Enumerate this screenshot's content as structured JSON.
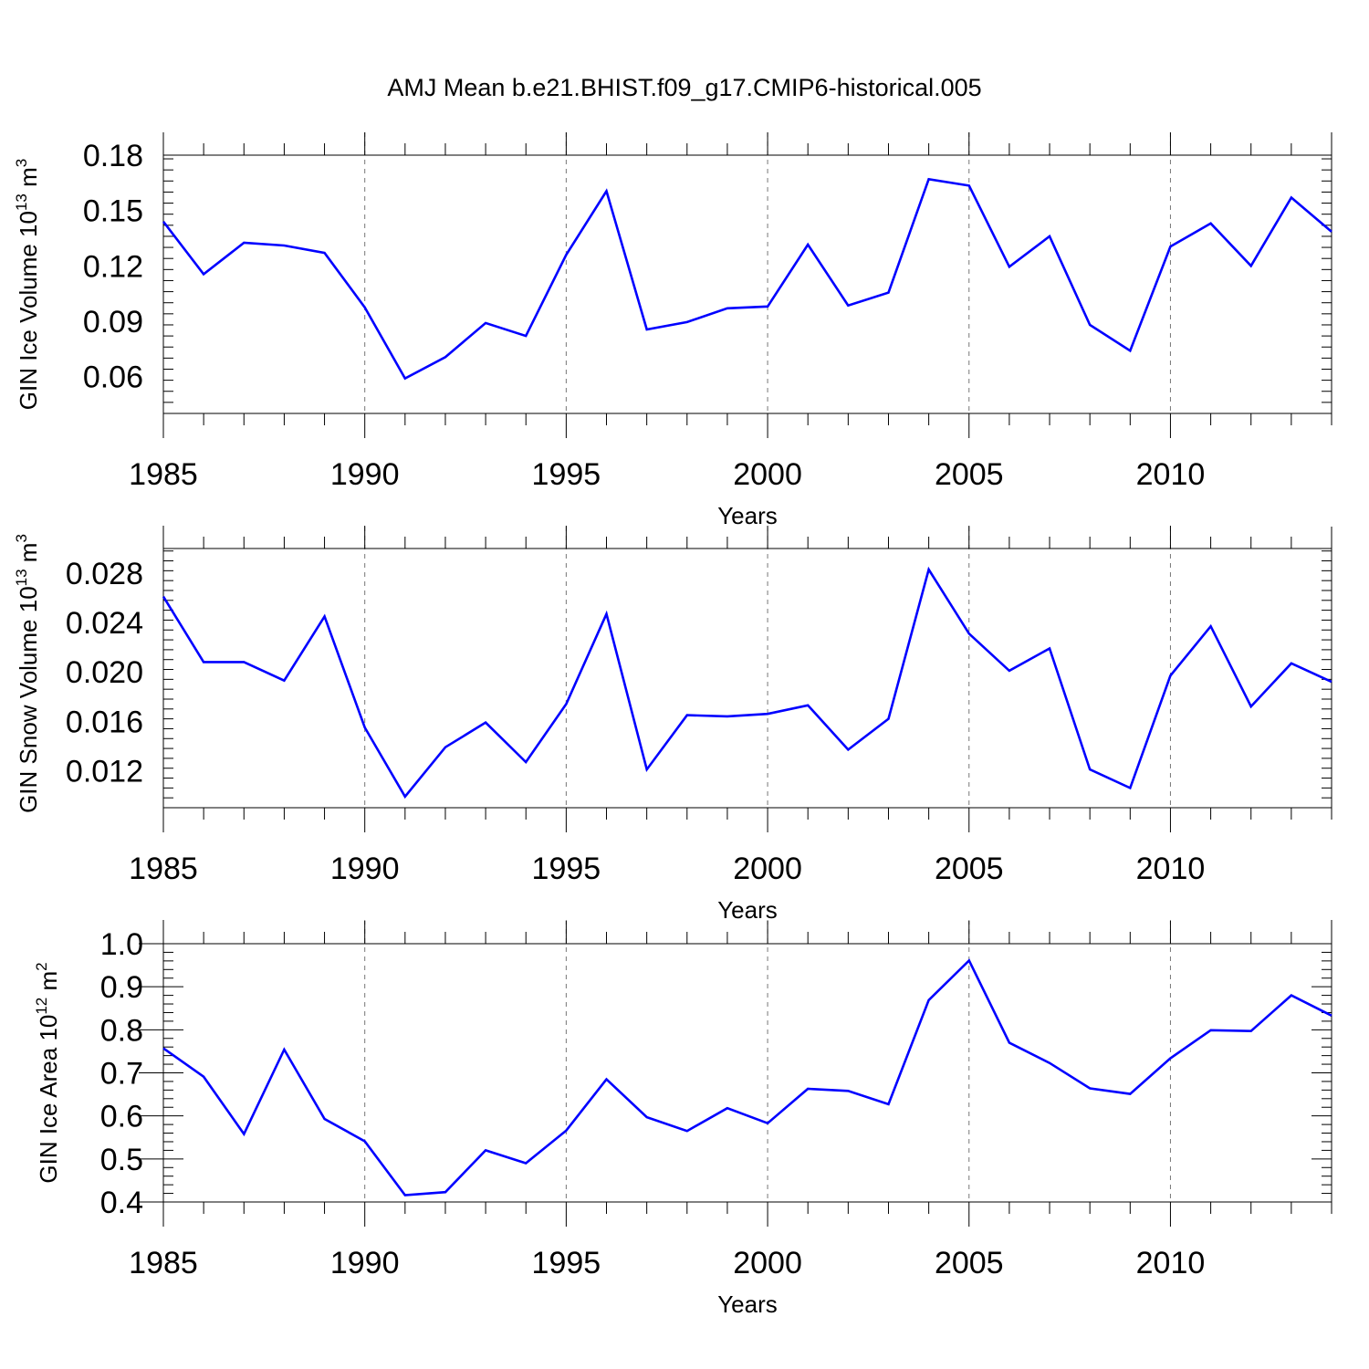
{
  "figure_title": "AMJ Mean b.e21.BHIST.f09_g17.CMIP6-historical.005",
  "chart_data": [
    {
      "type": "line",
      "title": "AMJ Mean b.e21.BHIST.f09_g17.CMIP6-historical.005",
      "ylabel": "GIN Ice Volume 10",
      "ylabel_unit_exp": "13",
      "ylabel_unit": " m",
      "ylabel_unit_pow": "3",
      "xlabel": "Years",
      "xlim": [
        1985,
        2014
      ],
      "ylim": [
        0.04,
        0.18
      ],
      "yticks": [
        0.06,
        0.09,
        0.12,
        0.15,
        0.18
      ],
      "ytick_labels": [
        "0.06",
        "0.09",
        "0.12",
        "0.15",
        "0.18"
      ],
      "xticks": [
        1985,
        1990,
        1995,
        2000,
        2005,
        2010
      ],
      "xtick_labels": [
        "1985",
        "1990",
        "1995",
        "2000",
        "2005",
        "2010"
      ],
      "grid_x": true,
      "color": "#0000ff",
      "series": [
        {
          "name": "GIN Ice Volume",
          "x": [
            1985,
            1986,
            1987,
            1988,
            1989,
            1990,
            1991,
            1992,
            1993,
            1994,
            1995,
            1996,
            1997,
            1998,
            1999,
            2000,
            2001,
            2002,
            2003,
            2004,
            2005,
            2006,
            2007,
            2008,
            2009,
            2010,
            2011,
            2012,
            2013,
            2014
          ],
          "values": [
            0.144,
            0.1155,
            0.1325,
            0.131,
            0.127,
            0.0975,
            0.059,
            0.0705,
            0.089,
            0.082,
            0.126,
            0.1605,
            0.0855,
            0.0895,
            0.097,
            0.098,
            0.1315,
            0.0985,
            0.1055,
            0.167,
            0.1635,
            0.1195,
            0.136,
            0.088,
            0.074,
            0.1305,
            0.143,
            0.12,
            0.157,
            0.1385
          ]
        }
      ]
    },
    {
      "type": "line",
      "ylabel": "GIN Snow Volume 10",
      "ylabel_unit_exp": "13",
      "ylabel_unit": " m",
      "ylabel_unit_pow": "3",
      "xlabel": "Years",
      "xlim": [
        1985,
        2014
      ],
      "ylim": [
        0.009,
        0.03
      ],
      "yticks": [
        0.012,
        0.016,
        0.02,
        0.024,
        0.028
      ],
      "ytick_labels": [
        "0.012",
        "0.016",
        "0.020",
        "0.024",
        "0.028"
      ],
      "xticks": [
        1985,
        1990,
        1995,
        2000,
        2005,
        2010
      ],
      "xtick_labels": [
        "1985",
        "1990",
        "1995",
        "2000",
        "2005",
        "2010"
      ],
      "grid_x": true,
      "color": "#0000ff",
      "series": [
        {
          "name": "GIN Snow Volume",
          "x": [
            1985,
            1986,
            1987,
            1988,
            1989,
            1990,
            1991,
            1992,
            1993,
            1994,
            1995,
            1996,
            1997,
            1998,
            1999,
            2000,
            2001,
            2002,
            2003,
            2004,
            2005,
            2006,
            2007,
            2008,
            2009,
            2010,
            2011,
            2012,
            2013,
            2014
          ],
          "values": [
            0.0261,
            0.0208,
            0.0208,
            0.0193,
            0.0245,
            0.0155,
            0.0099,
            0.0139,
            0.0159,
            0.0127,
            0.0174,
            0.0247,
            0.0121,
            0.0165,
            0.0164,
            0.0166,
            0.0173,
            0.0137,
            0.0162,
            0.0283,
            0.0231,
            0.0201,
            0.0219,
            0.0121,
            0.0106,
            0.0197,
            0.0237,
            0.0172,
            0.0207,
            0.0192
          ]
        }
      ]
    },
    {
      "type": "line",
      "ylabel": "GIN Ice Area 10",
      "ylabel_unit_exp": "12",
      "ylabel_unit": " m",
      "ylabel_unit_pow": "2",
      "xlabel": "Years",
      "xlim": [
        1985,
        2014
      ],
      "ylim": [
        0.4,
        1.0
      ],
      "yticks": [
        0.4,
        0.5,
        0.6,
        0.7,
        0.8,
        0.9,
        1.0
      ],
      "ytick_labels": [
        "0.4",
        "0.5",
        "0.6",
        "0.7",
        "0.8",
        "0.9",
        "1.0"
      ],
      "xticks": [
        1985,
        1990,
        1995,
        2000,
        2005,
        2010
      ],
      "xtick_labels": [
        "1985",
        "1990",
        "1995",
        "2000",
        "2005",
        "2010"
      ],
      "grid_x": true,
      "color": "#0000ff",
      "series": [
        {
          "name": "GIN Ice Area",
          "x": [
            1985,
            1986,
            1987,
            1988,
            1989,
            1990,
            1991,
            1992,
            1993,
            1994,
            1995,
            1996,
            1997,
            1998,
            1999,
            2000,
            2001,
            2002,
            2003,
            2004,
            2005,
            2006,
            2007,
            2008,
            2009,
            2010,
            2011,
            2012,
            2013,
            2014
          ],
          "values": [
            0.757,
            0.691,
            0.558,
            0.754,
            0.593,
            0.541,
            0.416,
            0.423,
            0.52,
            0.49,
            0.566,
            0.685,
            0.597,
            0.565,
            0.618,
            0.583,
            0.663,
            0.658,
            0.627,
            0.869,
            0.961,
            0.77,
            0.723,
            0.664,
            0.651,
            0.734,
            0.799,
            0.797,
            0.88,
            0.833
          ]
        }
      ]
    }
  ]
}
